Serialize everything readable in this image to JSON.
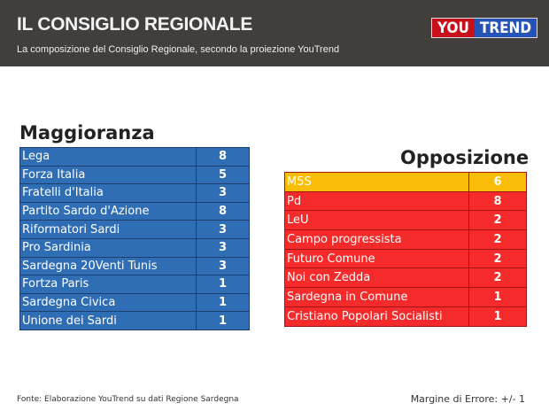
{
  "header": {
    "title": "IL CONSIGLIO REGIONALE",
    "subtitle": "La composizione del Consiglio Regionale, secondo la proiezione YouTrend",
    "logo_you": "YOU",
    "logo_trend": "TREND"
  },
  "maggioranza": {
    "title": "Maggioranza",
    "color": "#2f6eb5",
    "rows": [
      {
        "name": "Lega",
        "seats": "8"
      },
      {
        "name": "Forza Italia",
        "seats": "5"
      },
      {
        "name": "Fratelli d'Italia",
        "seats": "3"
      },
      {
        "name": "Partito Sardo d'Azione",
        "seats": "8"
      },
      {
        "name": "Riformatori Sardi",
        "seats": "3"
      },
      {
        "name": "Pro Sardinia",
        "seats": "3"
      },
      {
        "name": "Sardegna 20Venti Tunis",
        "seats": "3"
      },
      {
        "name": "Fortza Paris",
        "seats": "1"
      },
      {
        "name": "Sardegna Civica",
        "seats": "1"
      },
      {
        "name": "Unione dei Sardi",
        "seats": "1"
      }
    ]
  },
  "opposizione": {
    "title": "Opposizione",
    "color": "#f52a2b",
    "highlight_color": "#f9bd07",
    "rows": [
      {
        "name": "M5S",
        "seats": "6"
      },
      {
        "name": "Pd",
        "seats": "8"
      },
      {
        "name": "LeU",
        "seats": "2"
      },
      {
        "name": "Campo progressista",
        "seats": "2"
      },
      {
        "name": "Futuro Comune",
        "seats": "2"
      },
      {
        "name": "Noi con Zedda",
        "seats": "2"
      },
      {
        "name": "Sardegna in Comune",
        "seats": "1"
      },
      {
        "name": "Cristiano Popolari Socialisti",
        "seats": "1"
      }
    ]
  },
  "footer": {
    "source": "Fonte: Elaborazione YouTrend su dati Regione Sardegna",
    "margin": "Margine di Errore: +/- 1"
  }
}
